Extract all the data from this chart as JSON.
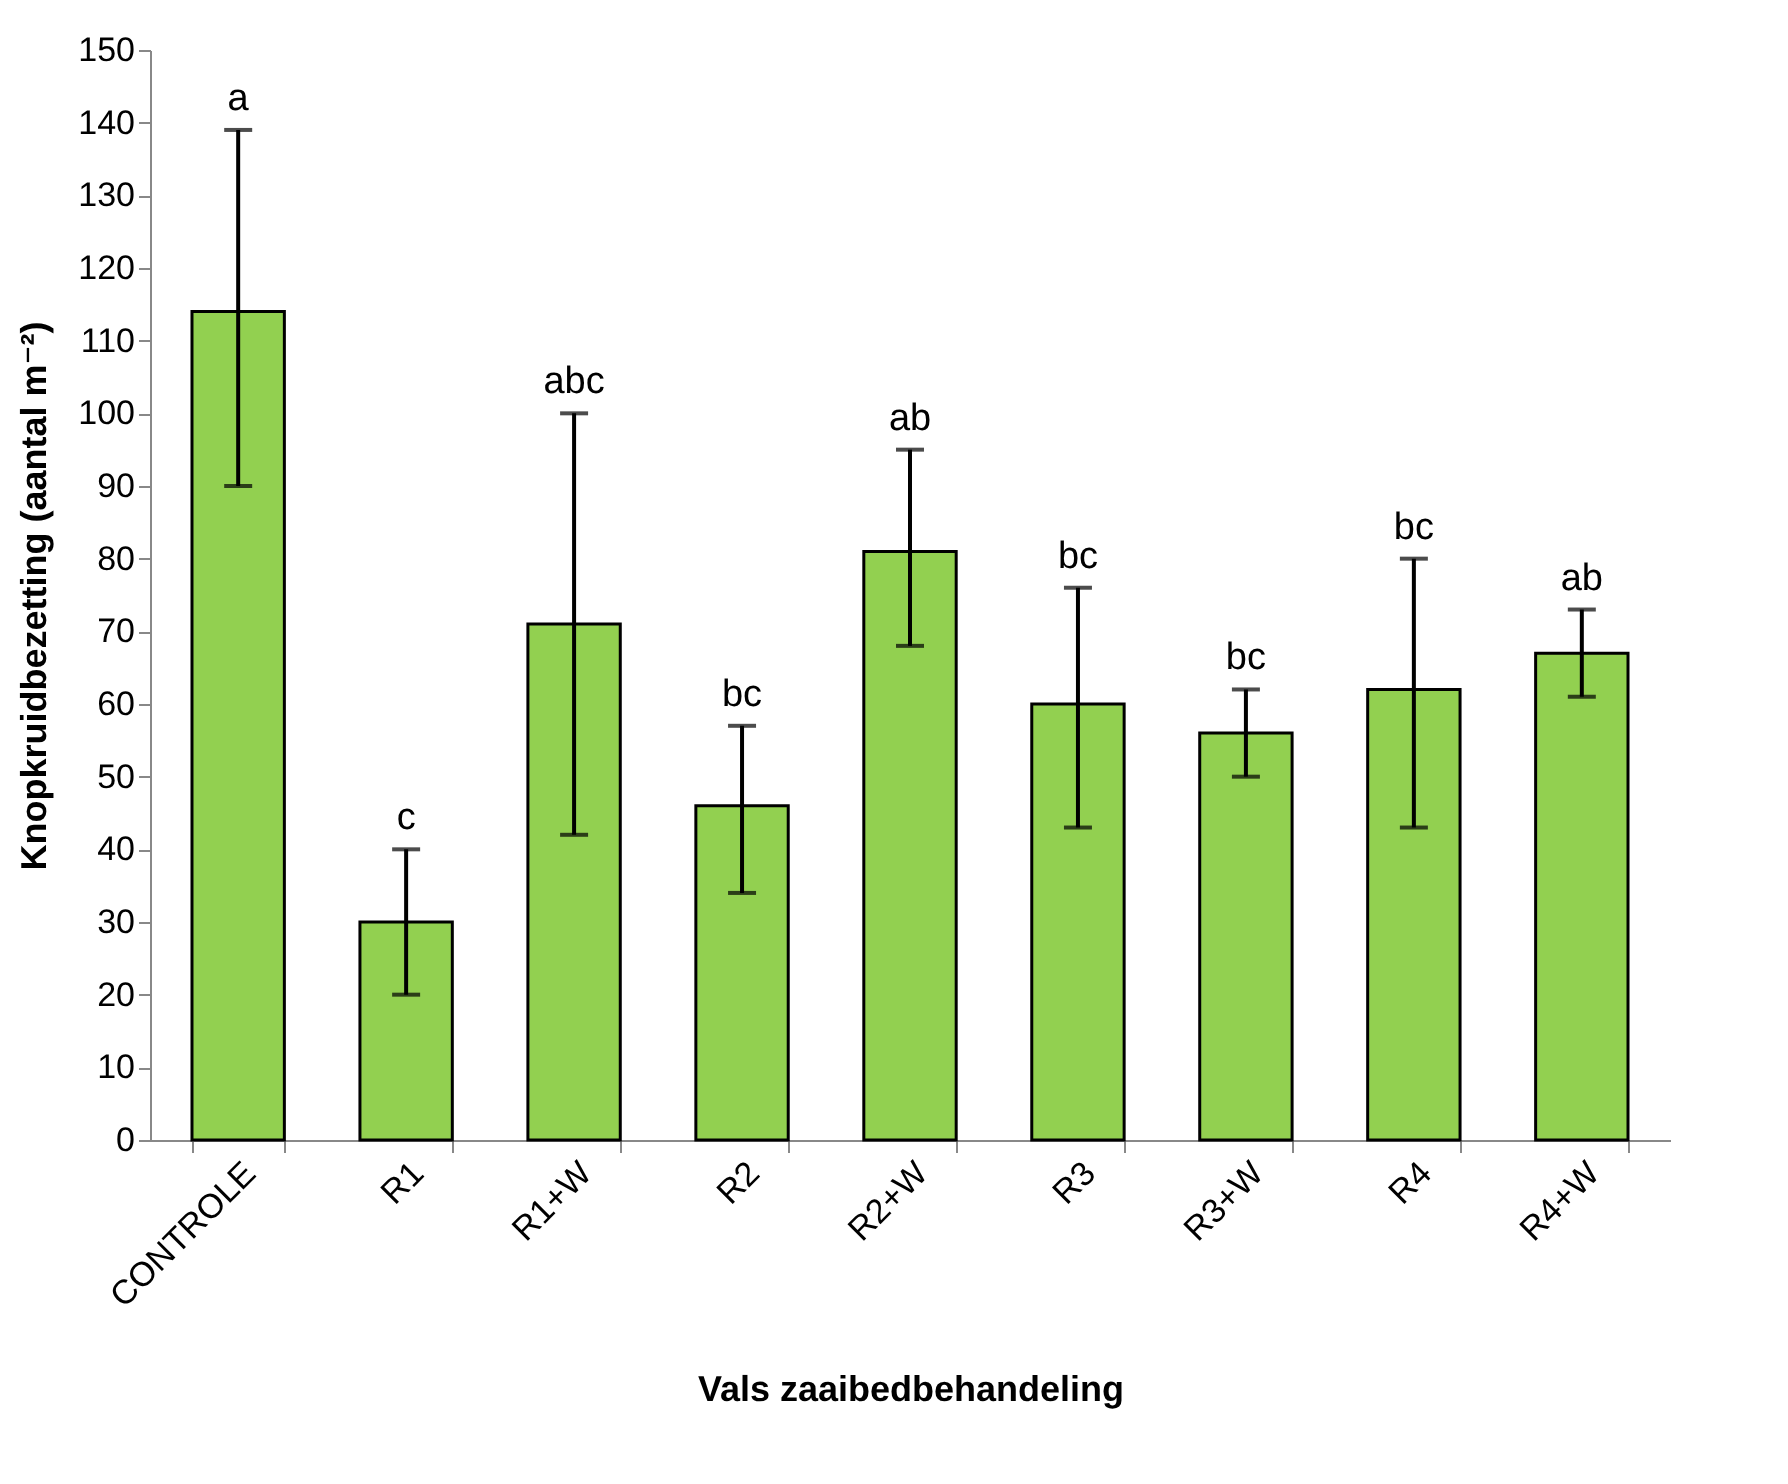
{
  "chart_data": {
    "type": "bar",
    "xlabel": "Vals zaaibedbehandeling",
    "ylabel": "Knopkruidbezetting (aantal m⁻²)",
    "categories": [
      "CONTROLE",
      "R1",
      "R1+W",
      "R2",
      "R2+W",
      "R3",
      "R3+W",
      "R4",
      "R4+W"
    ],
    "values": [
      114,
      30,
      71,
      46,
      81,
      60,
      56,
      62,
      67
    ],
    "errors": [
      [
        90,
        139
      ],
      [
        20,
        40
      ],
      [
        42,
        100
      ],
      [
        34,
        57
      ],
      [
        68,
        95
      ],
      [
        43,
        76
      ],
      [
        50,
        62
      ],
      [
        43,
        80
      ],
      [
        61,
        73
      ]
    ],
    "color": "#92d050",
    "ylim": [
      0,
      150
    ],
    "yticks": [
      0,
      10,
      20,
      30,
      40,
      50,
      60,
      70,
      80,
      90,
      100,
      110,
      120,
      130,
      140,
      150
    ],
    "grid": false,
    "annotations": [
      "a",
      "c",
      "abc",
      "bc",
      "ab",
      "bc",
      "bc",
      "bc",
      "ab"
    ]
  }
}
